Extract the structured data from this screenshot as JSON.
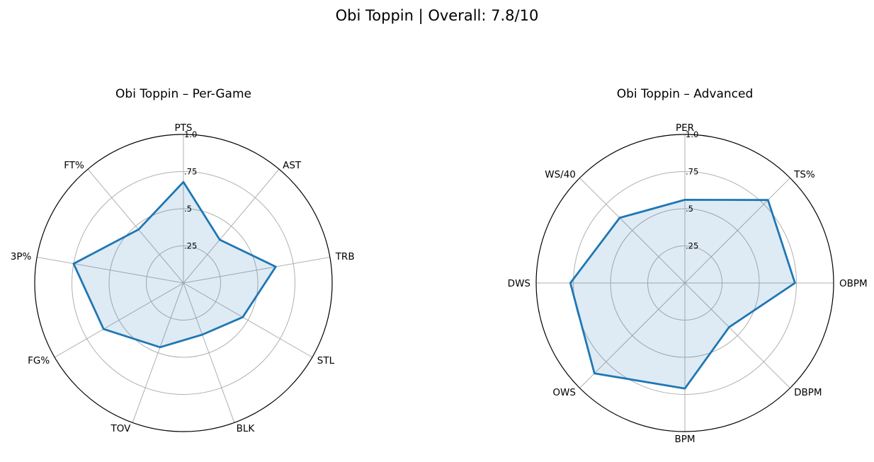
{
  "figure": {
    "title": "Obi Toppin | Overall: 7.8/10"
  },
  "colors": {
    "series_line": "#1f77b4",
    "series_fill": "#1f77b4",
    "grid": "#b0b0b0",
    "outer_frame": "#000000"
  },
  "chart_data": [
    {
      "type": "radar",
      "title": "Obi Toppin – Per-Game",
      "axes": [
        "PTS",
        "AST",
        "TRB",
        "STL",
        "BLK",
        "TOV",
        "FG%",
        "3P%",
        "FT%"
      ],
      "rlim": [
        0,
        1
      ],
      "rticks": [
        0.25,
        0.5,
        0.75,
        1.0
      ],
      "rtick_labels": [
        ".25",
        ".5",
        ".75",
        "1.0"
      ],
      "grid": true,
      "series": [
        {
          "values": [
            0.68,
            0.38,
            0.63,
            0.46,
            0.37,
            0.46,
            0.62,
            0.75,
            0.47
          ]
        }
      ]
    },
    {
      "type": "radar",
      "title": "Obi Toppin – Advanced",
      "axes": [
        "PER",
        "TS%",
        "OBPM",
        "DBPM",
        "BPM",
        "OWS",
        "DWS",
        "WS/40"
      ],
      "rlim": [
        0,
        1
      ],
      "rticks": [
        0.25,
        0.5,
        0.75,
        1.0
      ],
      "rtick_labels": [
        ".25",
        ".5",
        ".75",
        "1.0"
      ],
      "grid": true,
      "series": [
        {
          "values": [
            0.56,
            0.79,
            0.74,
            0.42,
            0.71,
            0.86,
            0.77,
            0.62
          ]
        }
      ]
    }
  ]
}
